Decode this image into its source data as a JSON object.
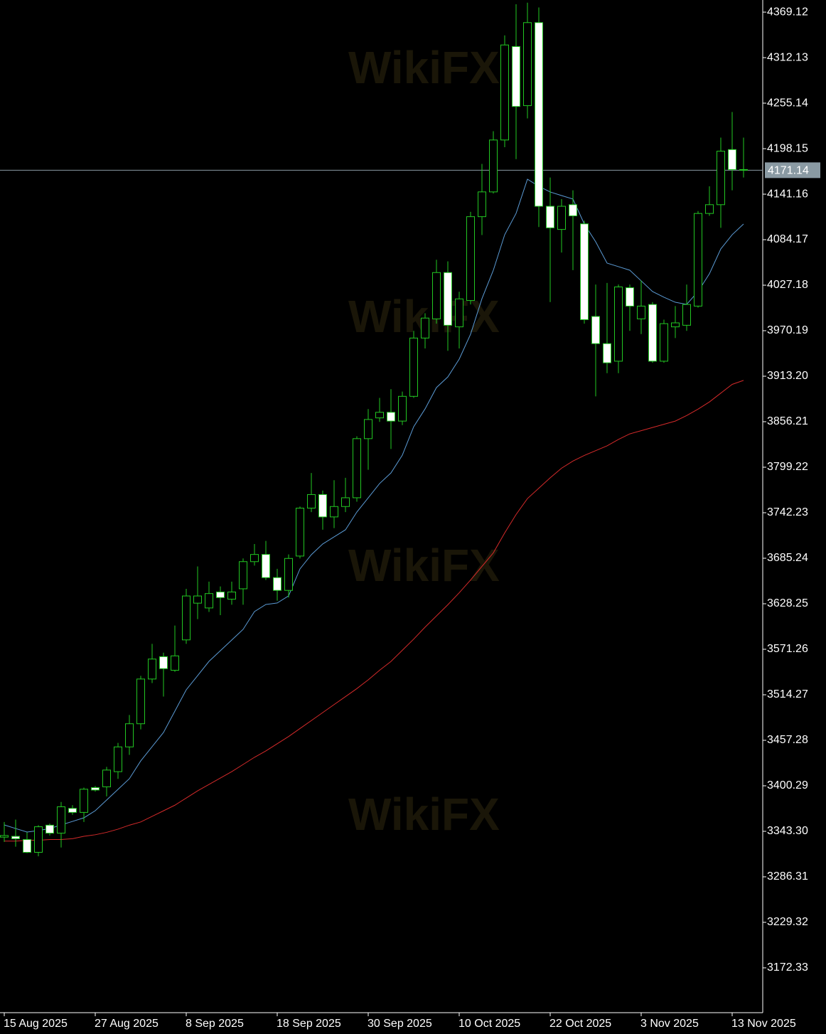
{
  "chart_data": {
    "type": "candlestick",
    "watermark": "WikiFX",
    "categories": [
      "15 Aug 2025",
      null,
      null,
      null,
      null,
      null,
      null,
      null,
      "27 Aug 2025",
      null,
      null,
      null,
      null,
      null,
      null,
      null,
      "8 Sep 2025",
      null,
      null,
      null,
      null,
      null,
      null,
      null,
      "18 Sep 2025",
      null,
      null,
      null,
      null,
      null,
      null,
      null,
      "30 Sep 2025",
      null,
      null,
      null,
      null,
      null,
      null,
      null,
      "10 Oct 2025",
      null,
      null,
      null,
      null,
      null,
      null,
      null,
      "22 Oct 2025",
      null,
      null,
      null,
      null,
      null,
      null,
      null,
      "3 Nov 2025",
      null,
      null,
      null,
      null,
      null,
      null,
      null,
      "13 Nov 2025",
      null
    ],
    "open": [
      3336,
      3337,
      3333,
      3317,
      3351,
      3341,
      3372,
      3367,
      3398,
      3399,
      3418,
      3449,
      3478,
      3534,
      3562,
      3545,
      3583,
      3629,
      3623,
      3643,
      3634,
      3647,
      3681,
      3690,
      3661,
      3645,
      3688,
      3748,
      3765,
      3737,
      3750,
      3761,
      3835,
      3861,
      3868,
      3857,
      3888,
      3961,
      3985,
      4043,
      3975,
      4008,
      4113,
      4144,
      4209,
      4326,
      4252,
      4356,
      4126,
      4097,
      4128,
      4104,
      3988,
      3954,
      3932,
      4024,
      3985,
      4003,
      3932,
      3975,
      3977,
      4001,
      4117,
      4128,
      4197,
      4172
    ],
    "high": [
      3355,
      3358,
      3342,
      3351,
      3353,
      3380,
      3376,
      3398,
      3400,
      3424,
      3454,
      3489,
      3538,
      3578,
      3567,
      3601,
      3647,
      3675,
      3656,
      3650,
      3656,
      3685,
      3703,
      3707,
      3672,
      3690,
      3750,
      3792,
      3770,
      3783,
      3786,
      3838,
      3872,
      3886,
      3897,
      3894,
      3970,
      3992,
      4059,
      4057,
      4019,
      4119,
      4179,
      4220,
      4340,
      4379,
      4381,
      4375,
      4162,
      4135,
      4146,
      4108,
      4028,
      4030,
      4028,
      4028,
      4033,
      4006,
      3984,
      4001,
      4028,
      4120,
      4151,
      4212,
      4244,
      4212
    ],
    "low": [
      3330,
      3324,
      3316,
      3312,
      3338,
      3323,
      3364,
      3355,
      3393,
      3387,
      3409,
      3439,
      3471,
      3529,
      3512,
      3543,
      3578,
      3609,
      3618,
      3614,
      3627,
      3627,
      3676,
      3658,
      3632,
      3636,
      3685,
      3743,
      3721,
      3723,
      3743,
      3756,
      3796,
      3856,
      3822,
      3852,
      3886,
      3948,
      3979,
      3945,
      3948,
      4003,
      4090,
      4142,
      4200,
      4185,
      4236,
      4100,
      4006,
      4068,
      4046,
      3979,
      3888,
      3917,
      3917,
      3970,
      3966,
      3930,
      3930,
      3961,
      3970,
      3999,
      4114,
      4099,
      4146,
      4162
    ],
    "close": [
      3338,
      3334,
      3317,
      3349,
      3341,
      3374,
      3367,
      3396,
      3395,
      3420,
      3449,
      3478,
      3534,
      3559,
      3547,
      3563,
      3638,
      3638,
      3641,
      3636,
      3643,
      3681,
      3690,
      3661,
      3645,
      3685,
      3748,
      3765,
      3737,
      3750,
      3761,
      3835,
      3859,
      3868,
      3857,
      3888,
      3961,
      3986,
      4043,
      3977,
      4010,
      4113,
      4144,
      4209,
      4328,
      4251,
      4356,
      4126,
      4099,
      4126,
      4114,
      3984,
      3954,
      3930,
      4025,
      4001,
      4001,
      3932,
      3979,
      3980,
      4003,
      4117,
      4128,
      4195,
      4172,
      4171.14
    ],
    "candle_color": "#22c722",
    "bull_fill": "#000000",
    "bear_fill": "#ffffff",
    "lines": [
      {
        "color": "#5b9bd5",
        "values": [
          3351.3,
          3346.8,
          3342.4,
          3344.2,
          3346.8,
          3351.3,
          3355.7,
          3360.2,
          3369.1,
          3382.5,
          3395.8,
          3409.2,
          3431.5,
          3449.3,
          3467.1,
          3493.8,
          3520.5,
          3538.3,
          3556.1,
          3569.5,
          3582.8,
          3596.2,
          3618.5,
          3627.4,
          3629.2,
          3638.1,
          3671.9,
          3689.7,
          3703.1,
          3712.0,
          3720.9,
          3743.1,
          3760.9,
          3778.8,
          3792.1,
          3814.4,
          3850.0,
          3872.3,
          3899.0,
          3912.3,
          3934.6,
          3965.8,
          4010.3,
          4045.9,
          4090.4,
          4117.1,
          4159.9,
          4151.0,
          4143.9,
          4139.4,
          4135.0,
          4103.8,
          4081.5,
          4054.8,
          4050.4,
          4045.9,
          4032.6,
          4019.2,
          4012.1,
          4005.8,
          4003.2,
          4019.2,
          4041.5,
          4072.6,
          4090.4,
          4103.8
        ]
      },
      {
        "color": "#d42a2a",
        "values": [
          3331,
          3331,
          3332,
          3332,
          3333,
          3333,
          3334,
          3337,
          3339,
          3342,
          3346,
          3351,
          3355,
          3362,
          3369,
          3376,
          3385,
          3394,
          3402,
          3410,
          3418,
          3427,
          3436,
          3444,
          3453,
          3462,
          3472,
          3482,
          3492,
          3502,
          3512,
          3522,
          3533,
          3545,
          3556,
          3570,
          3584,
          3599,
          3613,
          3627,
          3642,
          3658,
          3675,
          3692,
          3717,
          3740,
          3760,
          3773,
          3786,
          3798,
          3807,
          3814,
          3820,
          3826,
          3834,
          3841,
          3845,
          3849,
          3853,
          3857,
          3864,
          3872,
          3881,
          3892,
          3903,
          3908
        ]
      }
    ],
    "current_price": 4171.14,
    "current_price_color": "#8a9aa3",
    "ylim": [
      3116.2,
      4384.3
    ],
    "yticks": [
      4369.12,
      4312.13,
      4255.14,
      4198.15,
      4141.16,
      4084.17,
      4027.18,
      3970.19,
      {
        "value": 3913.2,
        "label": "3913.20"
      },
      3856.21,
      3799.22,
      3742.23,
      3685.24,
      3628.25,
      3571.26,
      3514.27,
      3457.28,
      3400.29,
      {
        "value": 3343.3,
        "label": "3343.30"
      },
      3286.31,
      3229.32,
      3172.33
    ],
    "axis_color": "#ffffff"
  }
}
